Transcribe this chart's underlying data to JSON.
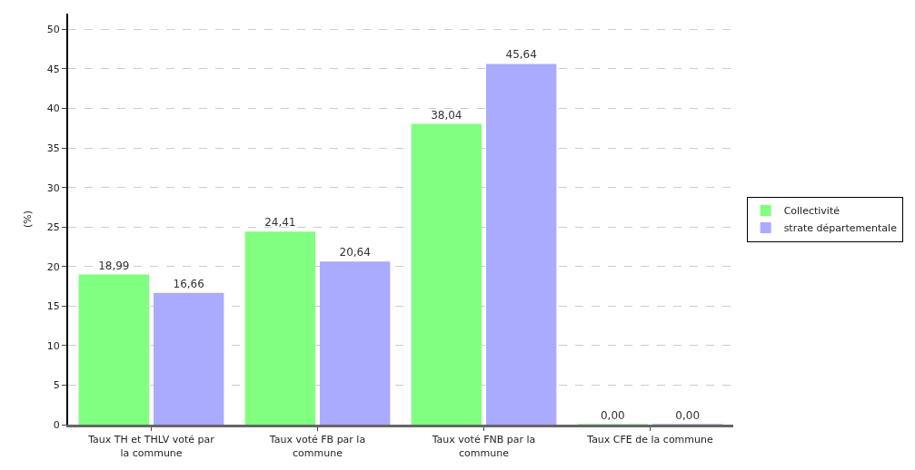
{
  "chart_data": {
    "type": "bar",
    "ylabel": "(%)",
    "categories": [
      "Taux TH et THLV voté par la commune",
      "Taux voté FB par la commune",
      "Taux voté FNB par la commune",
      "Taux CFE de la commune"
    ],
    "series": [
      {
        "name": "Collectivité",
        "color": "#80ff80",
        "values": [
          18.99,
          24.41,
          38.04,
          0.0
        ],
        "value_labels": [
          "18,99",
          "24,41",
          "38,04",
          "0,00"
        ]
      },
      {
        "name": "strate départementale",
        "color": "#aaaaff",
        "values": [
          16.66,
          20.64,
          45.64,
          0.0
        ],
        "value_labels": [
          "16,66",
          "20,64",
          "45,64",
          "0,00"
        ]
      }
    ],
    "ylim": [
      0,
      52
    ],
    "yticks": [
      0,
      5,
      10,
      15,
      20,
      25,
      30,
      35,
      40,
      45,
      50
    ],
    "grid": "y",
    "legend": "right"
  }
}
